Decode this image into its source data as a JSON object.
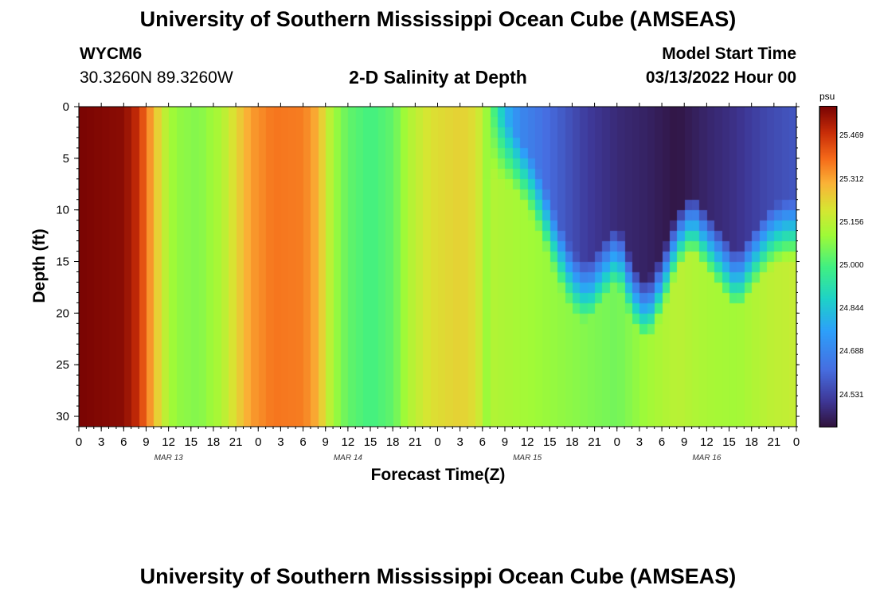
{
  "header": {
    "title": "University of Southern Mississippi Ocean Cube (AMSEAS)",
    "station_id": "WYCM6",
    "coords": "30.3260N  89.3260W",
    "plot_title": "2-D Salinity at Depth",
    "model_label": "Model Start Time",
    "model_time": "03/13/2022 Hour 00",
    "footer_title": "University of Southern Mississippi Ocean Cube (AMSEAS)"
  },
  "chart_data": {
    "type": "heatmap",
    "title": "2-D Salinity at Depth",
    "xlabel": "Forecast Time(Z)",
    "ylabel": "Depth (ft)",
    "x_tick_labels": [
      "0",
      "3",
      "6",
      "9",
      "12",
      "15",
      "18",
      "21",
      "0",
      "3",
      "6",
      "9",
      "12",
      "15",
      "18",
      "21",
      "0",
      "3",
      "6",
      "9",
      "12",
      "15",
      "18",
      "21",
      "0",
      "3",
      "6",
      "9",
      "12",
      "15",
      "18",
      "21",
      "0"
    ],
    "day_labels": [
      "MAR 13",
      "MAR 14",
      "MAR 15",
      "MAR 16"
    ],
    "y_ticks": [
      0,
      5,
      10,
      15,
      20,
      25,
      30
    ],
    "ylim": [
      0,
      31
    ],
    "xlim_hours": [
      0,
      96
    ],
    "colorbar": {
      "unit": "psu",
      "ticks": [
        "25.469",
        "25.312",
        "25.156",
        "25.000",
        "24.844",
        "24.688",
        "24.531"
      ],
      "range": [
        24.42,
        25.58
      ]
    },
    "salinity_surface_by_hour": [
      [
        0,
        25.58
      ],
      [
        6,
        25.56
      ],
      [
        8,
        25.48
      ],
      [
        9,
        25.38
      ],
      [
        10,
        25.3
      ],
      [
        11,
        25.2
      ],
      [
        12,
        25.13
      ],
      [
        13,
        25.1
      ],
      [
        16,
        25.08
      ],
      [
        19,
        25.14
      ],
      [
        21,
        25.24
      ],
      [
        23,
        25.33
      ],
      [
        26,
        25.38
      ],
      [
        30,
        25.37
      ],
      [
        32,
        25.3
      ],
      [
        33,
        25.2
      ],
      [
        34,
        25.12
      ],
      [
        36,
        25.04
      ],
      [
        39,
        25.0
      ],
      [
        42,
        25.04
      ],
      [
        44,
        25.14
      ],
      [
        47,
        25.22
      ],
      [
        51,
        25.25
      ],
      [
        53,
        25.22
      ],
      [
        54,
        25.16
      ],
      [
        55,
        25.06
      ],
      [
        56,
        24.95
      ],
      [
        57,
        24.82
      ],
      [
        59,
        24.7
      ],
      [
        64,
        24.6
      ],
      [
        68,
        24.52
      ],
      [
        72,
        24.48
      ],
      [
        76,
        24.46
      ],
      [
        80,
        24.43
      ],
      [
        84,
        24.47
      ],
      [
        88,
        24.5
      ],
      [
        92,
        24.55
      ],
      [
        96,
        24.58
      ]
    ],
    "salinity_bottom_by_hour": [
      [
        0,
        25.58
      ],
      [
        6,
        25.56
      ],
      [
        8,
        25.48
      ],
      [
        9,
        25.38
      ],
      [
        10,
        25.3
      ],
      [
        11,
        25.2
      ],
      [
        12,
        25.13
      ],
      [
        13,
        25.1
      ],
      [
        16,
        25.08
      ],
      [
        19,
        25.14
      ],
      [
        21,
        25.24
      ],
      [
        23,
        25.33
      ],
      [
        26,
        25.38
      ],
      [
        30,
        25.37
      ],
      [
        32,
        25.3
      ],
      [
        33,
        25.2
      ],
      [
        34,
        25.12
      ],
      [
        36,
        25.04
      ],
      [
        39,
        25.0
      ],
      [
        42,
        25.04
      ],
      [
        44,
        25.14
      ],
      [
        47,
        25.22
      ],
      [
        51,
        25.25
      ],
      [
        53,
        25.22
      ],
      [
        54,
        25.16
      ],
      [
        56,
        25.14
      ],
      [
        60,
        25.12
      ],
      [
        64,
        25.1
      ],
      [
        68,
        25.08
      ],
      [
        72,
        25.06
      ],
      [
        76,
        25.12
      ],
      [
        80,
        25.16
      ],
      [
        84,
        25.13
      ],
      [
        88,
        25.12
      ],
      [
        92,
        25.16
      ],
      [
        96,
        25.18
      ]
    ],
    "fresh_layer_depth_ft_by_hour": [
      [
        0,
        0
      ],
      [
        54,
        0
      ],
      [
        56,
        1
      ],
      [
        58,
        2
      ],
      [
        60,
        4
      ],
      [
        62,
        7
      ],
      [
        64,
        11
      ],
      [
        66,
        14
      ],
      [
        68,
        15
      ],
      [
        70,
        13
      ],
      [
        72,
        11
      ],
      [
        74,
        15
      ],
      [
        76,
        17
      ],
      [
        78,
        14
      ],
      [
        80,
        10
      ],
      [
        82,
        8
      ],
      [
        84,
        10
      ],
      [
        86,
        12
      ],
      [
        88,
        14
      ],
      [
        90,
        12
      ],
      [
        92,
        10
      ],
      [
        94,
        9
      ],
      [
        96,
        9
      ]
    ]
  }
}
